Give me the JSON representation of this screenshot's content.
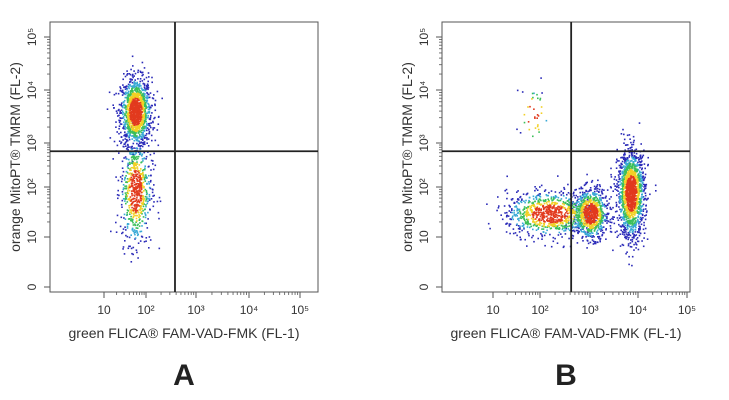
{
  "chart_data": [
    {
      "type": "scatter",
      "panel_label": "A",
      "xlabel": "green FLICA® FAM-VAD-FMK (FL-1)",
      "ylabel": "orange MitoPT® TMRM (FL-2)",
      "x_scale": "log",
      "y_scale": "log",
      "x_ticks": [
        "10",
        "10²",
        "10³",
        "10⁴",
        "10⁵"
      ],
      "y_ticks": [
        "0",
        "10",
        "10²",
        "10³",
        "10⁴",
        "10⁵"
      ],
      "quadrant_gate": {
        "x": 380,
        "y": 650
      },
      "populations": [
        {
          "name": "",
          "x_center": 55,
          "y_center": 4000,
          "x_spread_decades": 0.18,
          "y_spread_decades": 0.32,
          "count": 1300
        },
        {
          "name": "",
          "x_center": 55,
          "y_center": 90,
          "x_spread_decades": 0.18,
          "y_spread_decades": 0.55,
          "count": 650
        }
      ]
    },
    {
      "type": "scatter",
      "panel_label": "B",
      "xlabel": "green FLICA® FAM-VAD-FMK (FL-1)",
      "ylabel": "orange MitoPT® TMRM (FL-2)",
      "x_scale": "log",
      "y_scale": "log",
      "x_ticks": [
        "10",
        "10²",
        "10³",
        "10⁴",
        "10⁵"
      ],
      "y_ticks": [
        "0",
        "10",
        "10²",
        "10³",
        "10⁴",
        "10⁵"
      ],
      "quadrant_gate": {
        "x": 420,
        "y": 650
      },
      "populations": [
        {
          "name": "",
          "x_center": 150,
          "y_center": 30,
          "x_spread_decades": 0.45,
          "y_spread_decades": 0.22,
          "count": 900
        },
        {
          "name": "",
          "x_center": 1000,
          "y_center": 30,
          "x_spread_decades": 0.18,
          "y_spread_decades": 0.25,
          "count": 850
        },
        {
          "name": "",
          "x_center": 7000,
          "y_center": 80,
          "x_spread_decades": 0.14,
          "y_spread_decades": 0.45,
          "count": 1500
        },
        {
          "name": "",
          "x_center": 70,
          "y_center": 3500,
          "x_spread_decades": 0.18,
          "y_spread_decades": 0.28,
          "count": 35
        }
      ]
    }
  ],
  "colors": {
    "density_low": "#2b2bb8",
    "density_mid_low": "#39a9d6",
    "density_mid": "#3bbf5a",
    "density_mid_high": "#f2d024",
    "density_high": "#e23a1e",
    "axis": "#555555",
    "gate_line": "#222222"
  }
}
